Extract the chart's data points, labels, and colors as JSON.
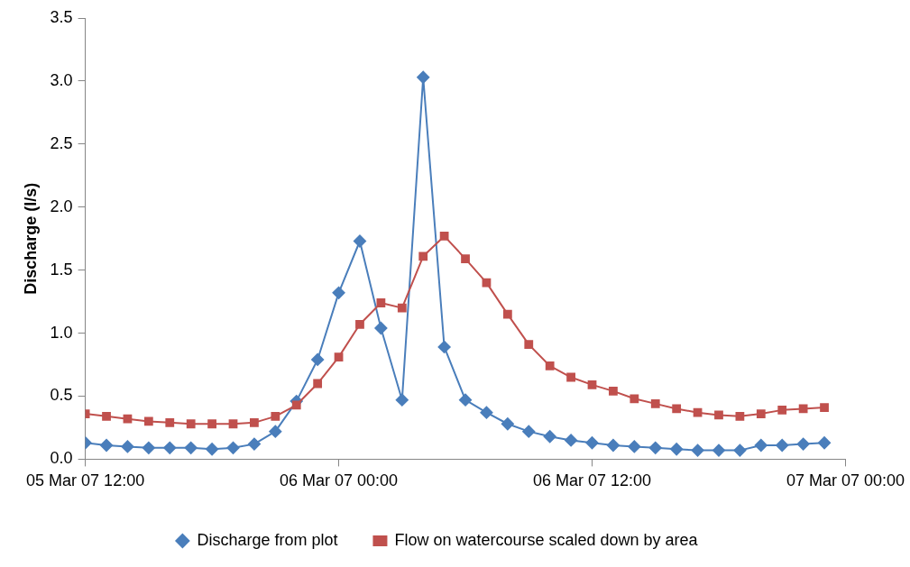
{
  "chart_data": {
    "type": "line",
    "ylabel": "Discharge (l/s)",
    "x": [
      "--03-05T12:00",
      "--03-05T13:00",
      "--03-05T14:00",
      "--03-05T15:00",
      "--03-05T16:00",
      "--03-05T17:00",
      "--03-05T18:00",
      "--03-05T19:00",
      "--03-05T20:00",
      "--03-05T21:00",
      "--03-05T22:00",
      "--03-05T23:00",
      "--03-06T00:00",
      "--03-06T01:00",
      "--03-06T02:00",
      "--03-06T03:00",
      "--03-06T04:00",
      "--03-06T05:00",
      "--03-06T06:00",
      "--03-06T07:00",
      "--03-06T08:00",
      "--03-06T09:00",
      "--03-06T10:00",
      "--03-06T11:00",
      "--03-06T12:00",
      "--03-06T13:00",
      "--03-06T14:00",
      "--03-06T15:00",
      "--03-06T16:00",
      "--03-06T17:00",
      "--03-06T18:00",
      "--03-06T19:00",
      "--03-06T20:00",
      "--03-06T21:00",
      "--03-06T22:00",
      "--03-06T23:00"
    ],
    "series": [
      {
        "name": "Discharge from plot",
        "color": "#4a7ebb",
        "marker": "diamond",
        "values": [
          0.13,
          0.11,
          0.1,
          0.09,
          0.09,
          0.09,
          0.08,
          0.09,
          0.12,
          0.22,
          0.46,
          0.79,
          1.32,
          1.73,
          1.04,
          0.47,
          3.03,
          0.89,
          0.47,
          0.37,
          0.28,
          0.22,
          0.18,
          0.15,
          0.13,
          0.11,
          0.1,
          0.09,
          0.08,
          0.07,
          0.07,
          0.07,
          0.11,
          0.11,
          0.12,
          0.13
        ]
      },
      {
        "name": "Flow on watercourse scaled down by area",
        "color": "#c0504d",
        "marker": "square",
        "values": [
          0.36,
          0.34,
          0.32,
          0.3,
          0.29,
          0.28,
          0.28,
          0.28,
          0.29,
          0.34,
          0.43,
          0.6,
          0.81,
          1.07,
          1.24,
          1.2,
          1.61,
          1.77,
          1.59,
          1.4,
          1.15,
          0.91,
          0.74,
          0.65,
          0.59,
          0.54,
          0.48,
          0.44,
          0.4,
          0.37,
          0.35,
          0.34,
          0.36,
          0.39,
          0.4,
          0.41
        ]
      }
    ],
    "xlim": [
      "--03-05T12:00",
      "--03-07T00:00"
    ],
    "xticks": [
      {
        "value": "--03-05T12:00",
        "label": "05 Mar 07 12:00"
      },
      {
        "value": "--03-06T00:00",
        "label": "06 Mar 07 00:00"
      },
      {
        "value": "--03-06T12:00",
        "label": "06 Mar 07 12:00"
      },
      {
        "value": "--03-07T00:00",
        "label": "07 Mar 07 00:00"
      }
    ],
    "ylim": [
      0,
      3.5
    ],
    "yticks": [
      {
        "value": 0,
        "label": "0.0"
      },
      {
        "value": 0.5,
        "label": "0.5"
      },
      {
        "value": 1,
        "label": "1.0"
      },
      {
        "value": 1.5,
        "label": "1.5"
      },
      {
        "value": 2,
        "label": "2.0"
      },
      {
        "value": 2.5,
        "label": "2.5"
      },
      {
        "value": 3,
        "label": "3.0"
      },
      {
        "value": 3.5,
        "label": "3.5"
      }
    ],
    "grid": false,
    "legend": "bottom",
    "line_style": "solid"
  }
}
